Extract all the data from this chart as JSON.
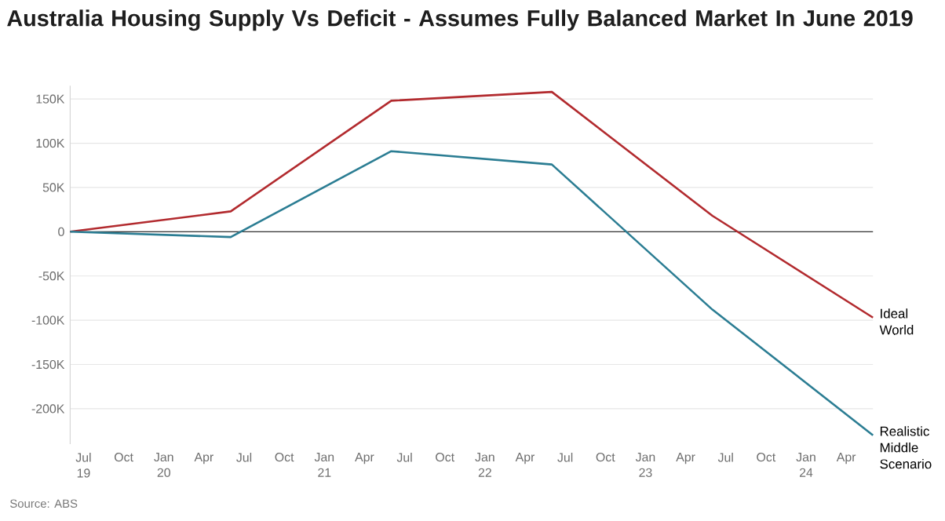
{
  "chart_data": {
    "type": "line",
    "title": "Australia Housing Supply Vs Deficit - Assumes Fully Balanced Market In June 2019",
    "x": [
      "2019-06",
      "2020-06",
      "2021-06",
      "2022-06",
      "2023-06",
      "2024-06"
    ],
    "series": [
      {
        "name": "Ideal World",
        "color": "#b22a2e",
        "values": [
          0,
          23000,
          148000,
          158000,
          18000,
          -97000
        ]
      },
      {
        "name": "Realistic Middle Scenario",
        "color": "#2b7d93",
        "values": [
          0,
          -6000,
          91000,
          76000,
          -88000,
          -230000
        ]
      }
    ],
    "xlim": [
      "2019-06",
      "2024-06"
    ],
    "xticks": [
      {
        "value": "2019-07",
        "label": "Jul 19"
      },
      {
        "value": "2019-10",
        "label": "Oct"
      },
      {
        "value": "2020-01",
        "label": "Jan 20"
      },
      {
        "value": "2020-04",
        "label": "Apr"
      },
      {
        "value": "2020-07",
        "label": "Jul"
      },
      {
        "value": "2020-10",
        "label": "Oct"
      },
      {
        "value": "2021-01",
        "label": "Jan 21"
      },
      {
        "value": "2021-04",
        "label": "Apr"
      },
      {
        "value": "2021-07",
        "label": "Jul"
      },
      {
        "value": "2021-10",
        "label": "Oct"
      },
      {
        "value": "2022-01",
        "label": "Jan 22"
      },
      {
        "value": "2022-04",
        "label": "Apr"
      },
      {
        "value": "2022-07",
        "label": "Jul"
      },
      {
        "value": "2022-10",
        "label": "Oct"
      },
      {
        "value": "2023-01",
        "label": "Jan 23"
      },
      {
        "value": "2023-04",
        "label": "Apr"
      },
      {
        "value": "2023-07",
        "label": "Jul"
      },
      {
        "value": "2023-10",
        "label": "Oct"
      },
      {
        "value": "2024-01",
        "label": "Jan 24"
      },
      {
        "value": "2024-04",
        "label": "Apr"
      }
    ],
    "yticks": [
      {
        "value": -200000,
        "label": "-200K"
      },
      {
        "value": -150000,
        "label": "-150K"
      },
      {
        "value": -100000,
        "label": "-100K"
      },
      {
        "value": -50000,
        "label": "-50K"
      },
      0,
      {
        "value": 50000,
        "label": "50K"
      },
      {
        "value": 100000,
        "label": "100K"
      },
      {
        "value": 150000,
        "label": "150K"
      }
    ],
    "ylim": [
      -240000,
      165000
    ],
    "grid": "y",
    "ref_lines": [
      {
        "axis": "y",
        "value": 0,
        "color": "#333333"
      }
    ],
    "annotations": [
      "Source: ABS"
    ]
  }
}
